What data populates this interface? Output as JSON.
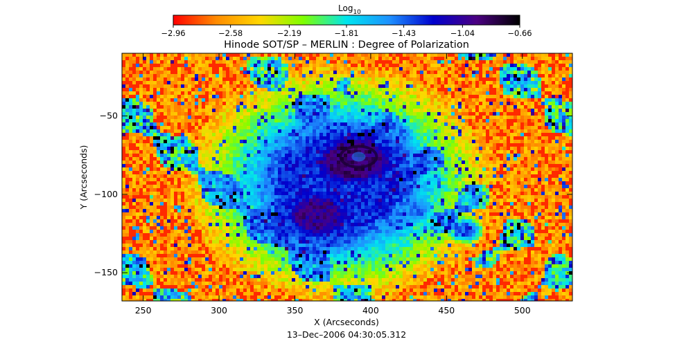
{
  "chart_data": {
    "type": "heatmap",
    "title": "Hinode SOT/SP – MERLIN : Degree of Polarization",
    "xlabel": "X (Arcseconds)",
    "ylabel": "Y (Arcseconds)",
    "date_label": "13–Dec–2006 04:30:05.312",
    "xlim": [
      236,
      533
    ],
    "ylim": [
      -168,
      -10
    ],
    "x_ticks": [
      250,
      300,
      350,
      400,
      450,
      500
    ],
    "y_ticks": [
      -150,
      -100,
      -50
    ],
    "colorbar": {
      "label": "Log",
      "label_sub": "10",
      "min": -2.96,
      "max": -0.66,
      "tick_values": [
        -2.96,
        -2.58,
        -2.19,
        -1.81,
        -1.43,
        -1.04,
        -0.66
      ],
      "tick_labels": [
        "−2.96",
        "−2.58",
        "−2.19",
        "−1.81",
        "−1.43",
        "−1.04",
        "−0.66"
      ],
      "colormap": [
        "#ff0000",
        "#ff8c00",
        "#ffd700",
        "#7fff00",
        "#00e5ee",
        "#1e90ff",
        "#0000cd",
        "#4b0082",
        "#000000"
      ]
    },
    "features": [
      {
        "name": "sunspot-umbra-main",
        "x": 388,
        "y": -78,
        "rx": 28,
        "ry": 16,
        "value": -0.9
      },
      {
        "name": "sunspot-umbra-secondary",
        "x": 364,
        "y": -112,
        "rx": 22,
        "ry": 16,
        "value": -1.0
      },
      {
        "name": "penumbra",
        "x": 378,
        "y": -92,
        "rx": 62,
        "ry": 46,
        "value": -1.3
      },
      {
        "name": "pore-1",
        "x": 462,
        "y": -122,
        "rx": 8,
        "ry": 6,
        "value": -1.4
      },
      {
        "name": "pore-2",
        "x": 430,
        "y": -109,
        "rx": 6,
        "ry": 5,
        "value": -1.5
      },
      {
        "name": "pore-3",
        "x": 418,
        "y": -60,
        "rx": 6,
        "ry": 5,
        "value": -1.5
      }
    ]
  }
}
